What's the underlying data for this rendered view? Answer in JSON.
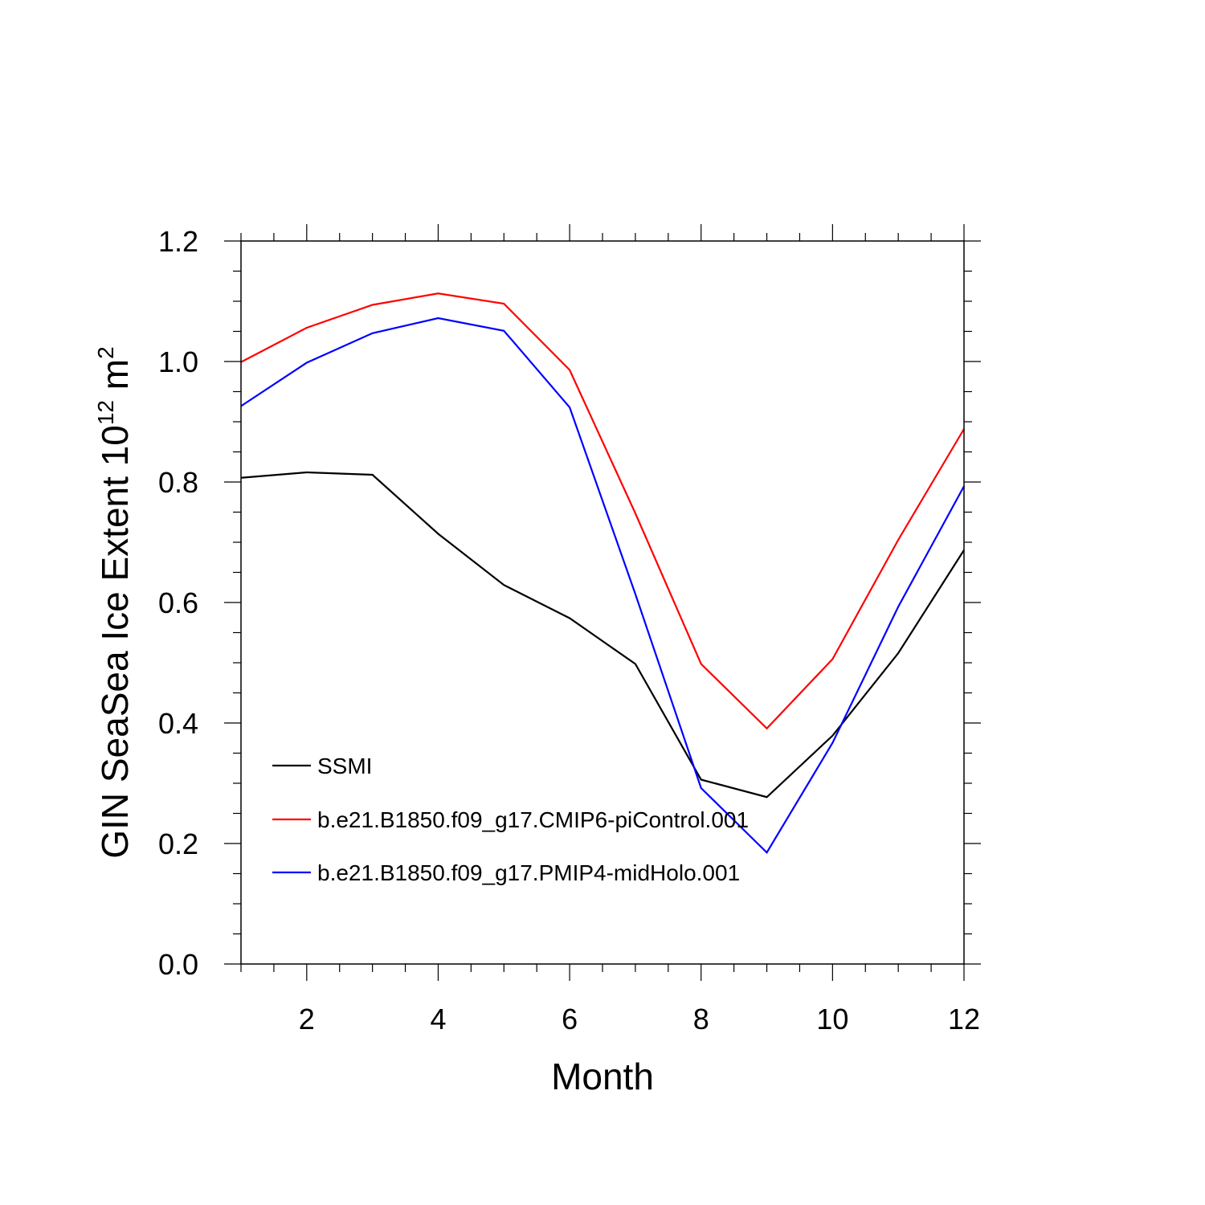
{
  "chart_data": {
    "type": "line",
    "xlabel": "Month",
    "ylabel": {
      "main": "GIN SeaSea Ice Extent 10",
      "exp1": "12",
      "unit": " m",
      "exp2": "2"
    },
    "xlim": [
      1,
      12
    ],
    "ylim": [
      0.0,
      1.2
    ],
    "x_ticks": [
      2,
      4,
      6,
      8,
      10,
      12
    ],
    "x_tick_labels": [
      "2",
      "4",
      "6",
      "8",
      "10",
      "12"
    ],
    "y_ticks": [
      0.0,
      0.2,
      0.4,
      0.6,
      0.8,
      1.0,
      1.2
    ],
    "y_tick_labels": [
      "0.0",
      "0.2",
      "0.4",
      "0.6",
      "0.8",
      "1.0",
      "1.2"
    ],
    "grid": false,
    "legend_position": "bottom-left",
    "x": [
      1,
      2,
      3,
      4,
      5,
      6,
      7,
      8,
      9,
      10,
      11,
      12
    ],
    "series": [
      {
        "name": "SSMI",
        "color": "#000000",
        "values": [
          0.807,
          0.816,
          0.812,
          0.714,
          0.629,
          0.574,
          0.498,
          0.306,
          0.277,
          0.379,
          0.516,
          0.687
        ]
      },
      {
        "name": "b.e21.B1850.f09_g17.CMIP6-piControl.001",
        "color": "#ff0000",
        "values": [
          0.999,
          1.056,
          1.094,
          1.113,
          1.096,
          0.986,
          0.748,
          0.498,
          0.391,
          0.506,
          0.704,
          0.888
        ]
      },
      {
        "name": "b.e21.B1850.f09_g17.PMIP4-midHolo.001",
        "color": "#0000ff",
        "values": [
          0.926,
          0.998,
          1.047,
          1.072,
          1.051,
          0.924,
          0.614,
          0.292,
          0.185,
          0.367,
          0.593,
          0.793
        ]
      }
    ]
  }
}
